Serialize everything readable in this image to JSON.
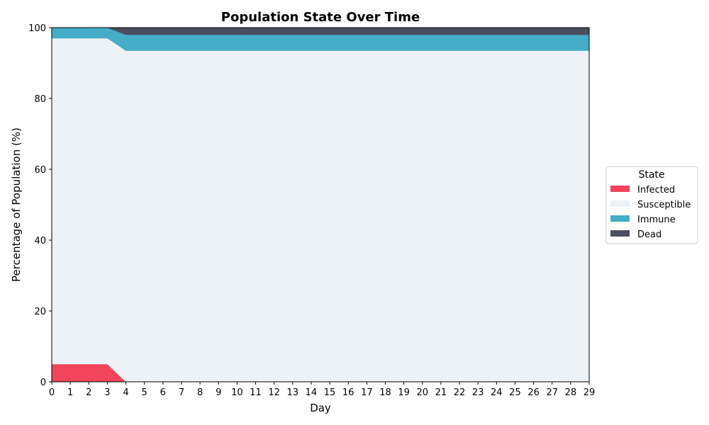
{
  "chart_data": {
    "type": "area",
    "stacked": true,
    "title": "Population State Over Time",
    "xlabel": "Day",
    "ylabel": "Percentage of Population (%)",
    "xlim": [
      0,
      29
    ],
    "ylim": [
      0,
      100
    ],
    "x_ticks": [
      "0",
      "1",
      "2",
      "3",
      "4",
      "5",
      "6",
      "7",
      "8",
      "9",
      "10",
      "11",
      "12",
      "13",
      "14",
      "15",
      "16",
      "17",
      "18",
      "19",
      "20",
      "21",
      "22",
      "23",
      "24",
      "25",
      "26",
      "27",
      "28",
      "29"
    ],
    "y_ticks": [
      "0",
      "20",
      "40",
      "60",
      "80",
      "100"
    ],
    "x": [
      0,
      1,
      2,
      3,
      4,
      5,
      6,
      7,
      8,
      9,
      10,
      11,
      12,
      13,
      14,
      15,
      16,
      17,
      18,
      19,
      20,
      21,
      22,
      23,
      24,
      25,
      26,
      27,
      28,
      29
    ],
    "grid": false,
    "legend_placement": "right",
    "legend_title": "State",
    "series": [
      {
        "name": "Infected",
        "color": "#f0455a",
        "values": [
          5,
          5,
          5,
          5,
          0,
          0,
          0,
          0,
          0,
          0,
          0,
          0,
          0,
          0,
          0,
          0,
          0,
          0,
          0,
          0,
          0,
          0,
          0,
          0,
          0,
          0,
          0,
          0,
          0,
          0
        ]
      },
      {
        "name": "Susceptible",
        "color": "#edf2f6",
        "values": [
          92,
          92,
          92,
          92,
          93.5,
          93.5,
          93.5,
          93.5,
          93.5,
          93.5,
          93.5,
          93.5,
          93.5,
          93.5,
          93.5,
          93.5,
          93.5,
          93.5,
          93.5,
          93.5,
          93.5,
          93.5,
          93.5,
          93.5,
          93.5,
          93.5,
          93.5,
          93.5,
          93.5,
          93.5
        ]
      },
      {
        "name": "Immune",
        "color": "#45adc7",
        "values": [
          3,
          3,
          3,
          3,
          4.5,
          4.5,
          4.5,
          4.5,
          4.5,
          4.5,
          4.5,
          4.5,
          4.5,
          4.5,
          4.5,
          4.5,
          4.5,
          4.5,
          4.5,
          4.5,
          4.5,
          4.5,
          4.5,
          4.5,
          4.5,
          4.5,
          4.5,
          4.5,
          4.5,
          4.5
        ]
      },
      {
        "name": "Dead",
        "color": "#4a4e5f",
        "values": [
          0,
          0,
          0,
          0,
          2,
          2,
          2,
          2,
          2,
          2,
          2,
          2,
          2,
          2,
          2,
          2,
          2,
          2,
          2,
          2,
          2,
          2,
          2,
          2,
          2,
          2,
          2,
          2,
          2,
          2
        ]
      }
    ]
  }
}
